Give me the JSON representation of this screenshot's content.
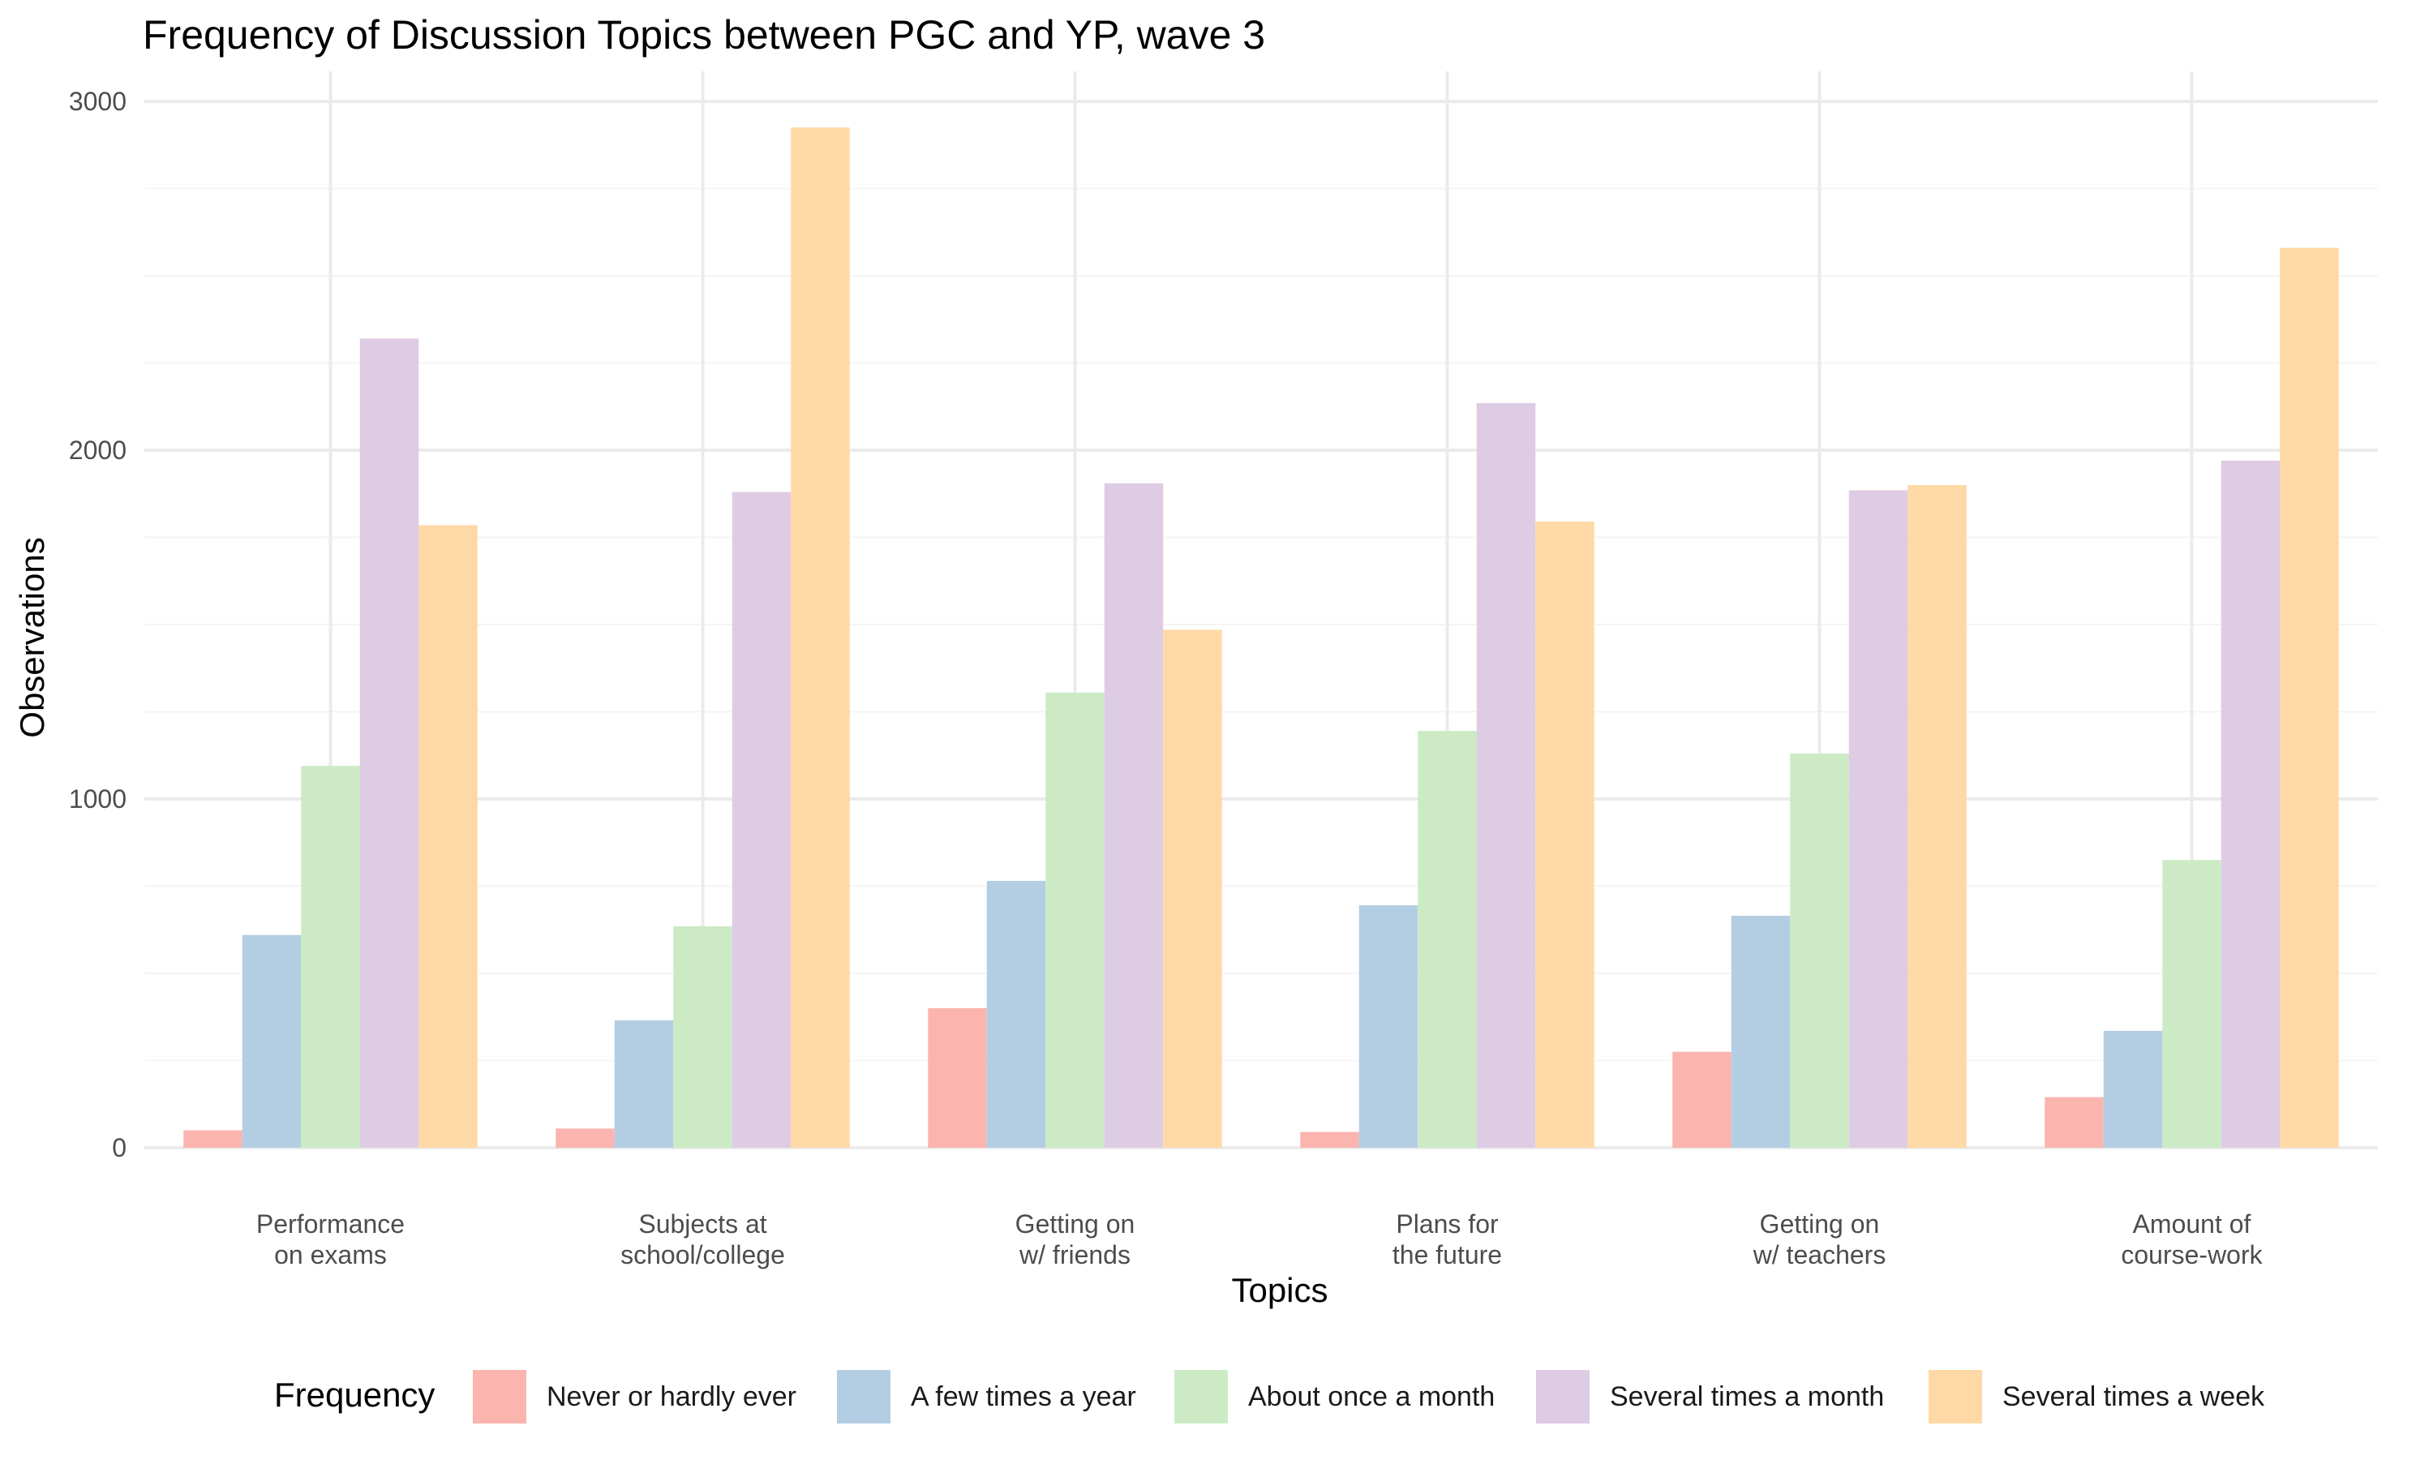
{
  "chart_data": {
    "type": "bar",
    "title": "Frequency of Discussion Topics between PGC and YP, wave 3",
    "xlabel": "Topics",
    "ylabel": "Observations",
    "ylim": [
      0,
      3000
    ],
    "yticks": [
      "0",
      "1000",
      "2000",
      "3000"
    ],
    "categories": [
      [
        "Performance",
        "on exams"
      ],
      [
        "Subjects at",
        "school/college"
      ],
      [
        "Getting on",
        "w/ friends"
      ],
      [
        "Plans for",
        "the future"
      ],
      [
        "Getting on",
        "w/ teachers"
      ],
      [
        "Amount of",
        "course-work"
      ]
    ],
    "legend": {
      "title": "Frequency",
      "position": "bottom"
    },
    "grid": true,
    "series": [
      {
        "name": "Never or hardly ever",
        "color": "#FBB4AE",
        "values": [
          50,
          55,
          400,
          45,
          275,
          145
        ]
      },
      {
        "name": "A few times a year",
        "color": "#B3CDE3",
        "values": [
          610,
          365,
          765,
          695,
          665,
          335
        ]
      },
      {
        "name": "About once a month",
        "color": "#CCEBC5",
        "values": [
          1095,
          635,
          1305,
          1195,
          1130,
          825
        ]
      },
      {
        "name": "Several times a month",
        "color": "#DECBE4",
        "values": [
          2320,
          1880,
          1905,
          2135,
          1885,
          1970
        ]
      },
      {
        "name": "Several times a week",
        "color": "#FED9A6",
        "values": [
          1785,
          2925,
          1485,
          1795,
          1900,
          2580
        ]
      }
    ]
  }
}
